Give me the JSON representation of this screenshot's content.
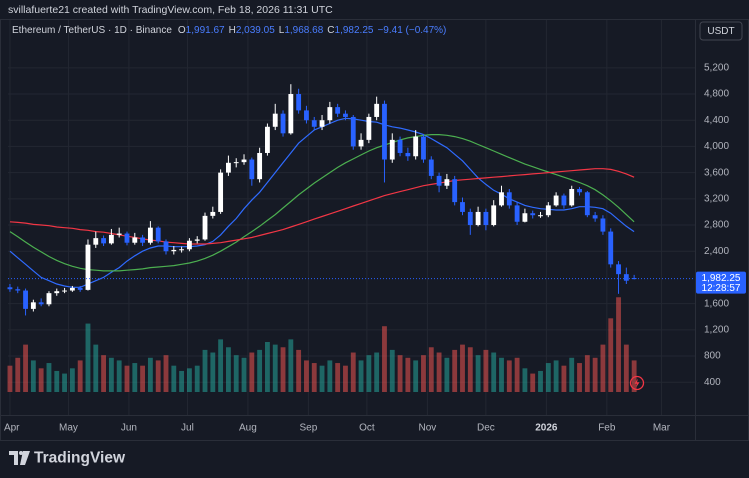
{
  "header": "svillafuerte21 created with TradingView.com, Feb 18, 2026 11:31 UTC",
  "currency": "USDT",
  "brand": "TradingView",
  "chart_data": {
    "type": "candlestick",
    "title": "Ethereum / TetherUS · 1D · Binance",
    "legend_ohlc": [
      [
        "O",
        "1,991.67"
      ],
      [
        "H",
        "2,039.05"
      ],
      [
        "L",
        "1,968.68"
      ],
      [
        "C",
        "1,982.25"
      ]
    ],
    "legend_change": "−9.41 (−0.47%)",
    "last_price_label": "1,982.25",
    "countdown": "12:28:57",
    "up_color": "#ffffff",
    "down_color": "#2962ff",
    "volume_up_color": "#26a69a",
    "volume_down_color": "#ef5350",
    "grid": true,
    "xlim": [
      -0.25,
      87.8
    ],
    "xticks": [
      {
        "value": 0,
        "label": "Apr"
      },
      {
        "value": 7.5,
        "label": "May"
      },
      {
        "value": 15.25,
        "label": "Jun"
      },
      {
        "value": 22.75,
        "label": "Jul"
      },
      {
        "value": 30.5,
        "label": "Aug"
      },
      {
        "value": 38.25,
        "label": "Sep"
      },
      {
        "value": 45.75,
        "label": "Oct"
      },
      {
        "value": 53.5,
        "label": "Nov"
      },
      {
        "value": 61,
        "label": "Dec"
      },
      {
        "value": 68.75,
        "label": "2026"
      },
      {
        "value": 76.5,
        "label": "Feb"
      },
      {
        "value": 83.5,
        "label": "Mar"
      }
    ],
    "ylim": [
      -100,
      5930
    ],
    "yticks": [
      400,
      800,
      {
        "value": 1200,
        "label": "1,200"
      },
      {
        "value": 1600,
        "label": "1,600"
      },
      {
        "value": 2400,
        "label": "2,400"
      },
      {
        "value": 2800,
        "label": "2,800"
      },
      {
        "value": 3200,
        "label": "3,200"
      },
      {
        "value": 3600,
        "label": "3,600"
      },
      {
        "value": 4000,
        "label": "4,000"
      },
      {
        "value": 4400,
        "label": "4,400"
      },
      {
        "value": 4800,
        "label": "4,800"
      },
      {
        "value": 5200,
        "label": "5,200"
      }
    ],
    "volume_lim": [
      0,
      1900
    ],
    "open": [
      1850,
      1820,
      1800,
      1520,
      1620,
      1590,
      1760,
      1790,
      1800,
      1840,
      1810,
      2500,
      2600,
      2520,
      2650,
      2670,
      2530,
      2610,
      2530,
      2760,
      2550,
      2400,
      2420,
      2430,
      2560,
      2580,
      2940,
      3000,
      3600,
      3750,
      3760,
      3800,
      3500,
      3900,
      4300,
      4500,
      4200,
      4800,
      4550,
      4400,
      4300,
      4400,
      4600,
      4500,
      4450,
      4000,
      4100,
      4450,
      4650,
      3800,
      4100,
      3900,
      3850,
      4150,
      3800,
      3550,
      3400,
      3500,
      3150,
      3000,
      2800,
      3000,
      2800,
      3100,
      3300,
      3100,
      2850,
      2980,
      2950,
      2950,
      3100,
      3250,
      3100,
      3350,
      3300,
      2950,
      2900,
      2700,
      2200,
      2050,
      1991.67
    ],
    "high": [
      1900,
      1860,
      1830,
      1660,
      1680,
      1790,
      1830,
      1840,
      1870,
      1870,
      2580,
      2700,
      2640,
      2740,
      2760,
      2700,
      2680,
      2650,
      2860,
      2780,
      2580,
      2480,
      2470,
      2600,
      2630,
      2990,
      3080,
      3650,
      3860,
      3820,
      3880,
      3830,
      3980,
      4350,
      4650,
      4550,
      4950,
      4880,
      4620,
      4450,
      4480,
      4680,
      4650,
      4550,
      4480,
      4200,
      4500,
      4760,
      4700,
      4200,
      4150,
      3980,
      4250,
      4180,
      3850,
      3600,
      3580,
      3550,
      3220,
      3050,
      3080,
      3050,
      3180,
      3400,
      3350,
      3150,
      3050,
      3020,
      3000,
      3150,
      3300,
      3280,
      3400,
      3380,
      3320,
      3000,
      2950,
      2750,
      2250,
      2150,
      2039.05
    ],
    "low": [
      1780,
      1760,
      1420,
      1480,
      1560,
      1560,
      1720,
      1760,
      1780,
      1780,
      1800,
      2450,
      2480,
      2500,
      2610,
      2490,
      2500,
      2480,
      2500,
      2520,
      2350,
      2350,
      2380,
      2400,
      2520,
      2560,
      2900,
      2970,
      3550,
      3680,
      3720,
      3400,
      3450,
      3860,
      4250,
      4150,
      4180,
      4500,
      4350,
      4250,
      4250,
      4350,
      4450,
      4400,
      3950,
      3950,
      4050,
      4400,
      3450,
      3750,
      3850,
      3780,
      3800,
      3750,
      3500,
      3300,
      3350,
      3100,
      2950,
      2650,
      2780,
      2720,
      2780,
      3080,
      3050,
      2800,
      2840,
      2900,
      2910,
      2920,
      3080,
      3050,
      3080,
      3250,
      2920,
      2850,
      2650,
      2150,
      1750,
      1900,
      1968.68
    ],
    "close": [
      1820,
      1800,
      1520,
      1620,
      1590,
      1760,
      1790,
      1800,
      1840,
      1810,
      2500,
      2600,
      2520,
      2650,
      2670,
      2530,
      2610,
      2530,
      2760,
      2550,
      2400,
      2420,
      2430,
      2560,
      2580,
      2940,
      3000,
      3600,
      3750,
      3760,
      3800,
      3500,
      3900,
      4300,
      4500,
      4200,
      4800,
      4550,
      4400,
      4300,
      4400,
      4600,
      4500,
      4450,
      4000,
      4100,
      4450,
      4650,
      3800,
      4100,
      3900,
      3850,
      4150,
      3800,
      3550,
      3400,
      3500,
      3150,
      3000,
      2800,
      3000,
      2800,
      3100,
      3300,
      3100,
      2850,
      2980,
      2950,
      2950,
      3100,
      3250,
      3100,
      3350,
      3300,
      2950,
      2900,
      2700,
      2200,
      2050,
      1950,
      1982.25
    ],
    "volume": [
      500,
      650,
      900,
      600,
      450,
      550,
      400,
      350,
      450,
      600,
      1300,
      900,
      700,
      650,
      600,
      500,
      550,
      500,
      650,
      600,
      700,
      500,
      400,
      450,
      500,
      800,
      750,
      1000,
      850,
      700,
      650,
      750,
      800,
      950,
      900,
      850,
      1000,
      800,
      600,
      550,
      500,
      600,
      550,
      500,
      750,
      600,
      700,
      750,
      1250,
      800,
      700,
      650,
      600,
      700,
      850,
      750,
      650,
      800,
      900,
      850,
      700,
      800,
      750,
      650,
      600,
      650,
      450,
      350,
      400,
      550,
      600,
      500,
      650,
      550,
      700,
      650,
      900,
      1400,
      1800,
      900,
      600
    ],
    "series": [
      {
        "color": "#2f6bff",
        "values": [
          2400,
          2300,
          2200,
          2100,
          2000,
          1950,
          1900,
          1870,
          1850,
          1850,
          1900,
          1950,
          2000,
          2080,
          2150,
          2250,
          2330,
          2400,
          2450,
          2480,
          2480,
          2470,
          2470,
          2470,
          2480,
          2500,
          2550,
          2650,
          2780,
          2900,
          3050,
          3180,
          3300,
          3450,
          3600,
          3750,
          3900,
          4050,
          4150,
          4250,
          4300,
          4350,
          4400,
          4430,
          4420,
          4400,
          4380,
          4370,
          4330,
          4300,
          4280,
          4250,
          4220,
          4180,
          4120,
          4050,
          3980,
          3880,
          3780,
          3650,
          3520,
          3420,
          3330,
          3270,
          3200,
          3150,
          3100,
          3070,
          3050,
          3040,
          3030,
          3030,
          3050,
          3080,
          3080,
          3070,
          3050,
          2980,
          2880,
          2780,
          2700
        ]
      },
      {
        "color": "#4caf50",
        "values": [
          2700,
          2620,
          2540,
          2460,
          2390,
          2320,
          2260,
          2210,
          2170,
          2140,
          2120,
          2110,
          2100,
          2100,
          2100,
          2110,
          2120,
          2130,
          2150,
          2160,
          2170,
          2180,
          2200,
          2220,
          2250,
          2290,
          2340,
          2400,
          2470,
          2540,
          2620,
          2700,
          2780,
          2870,
          2960,
          3060,
          3160,
          3260,
          3350,
          3440,
          3520,
          3600,
          3680,
          3750,
          3810,
          3870,
          3930,
          3980,
          4020,
          4060,
          4100,
          4130,
          4150,
          4170,
          4180,
          4180,
          4170,
          4150,
          4120,
          4080,
          4030,
          3980,
          3930,
          3880,
          3830,
          3780,
          3730,
          3690,
          3650,
          3610,
          3570,
          3530,
          3490,
          3450,
          3400,
          3340,
          3260,
          3170,
          3070,
          2960,
          2850
        ]
      },
      {
        "color": "#f23645",
        "values": [
          2850,
          2840,
          2830,
          2810,
          2800,
          2790,
          2770,
          2760,
          2750,
          2730,
          2720,
          2700,
          2690,
          2670,
          2650,
          2630,
          2610,
          2590,
          2570,
          2560,
          2540,
          2530,
          2520,
          2510,
          2510,
          2510,
          2520,
          2530,
          2550,
          2570,
          2590,
          2610,
          2640,
          2670,
          2700,
          2730,
          2770,
          2810,
          2850,
          2890,
          2930,
          2970,
          3010,
          3050,
          3090,
          3130,
          3170,
          3210,
          3250,
          3280,
          3310,
          3340,
          3370,
          3400,
          3420,
          3440,
          3460,
          3480,
          3490,
          3500,
          3510,
          3520,
          3530,
          3540,
          3550,
          3560,
          3570,
          3580,
          3590,
          3600,
          3610,
          3620,
          3630,
          3640,
          3650,
          3660,
          3660,
          3650,
          3620,
          3580,
          3530
        ]
      }
    ]
  }
}
